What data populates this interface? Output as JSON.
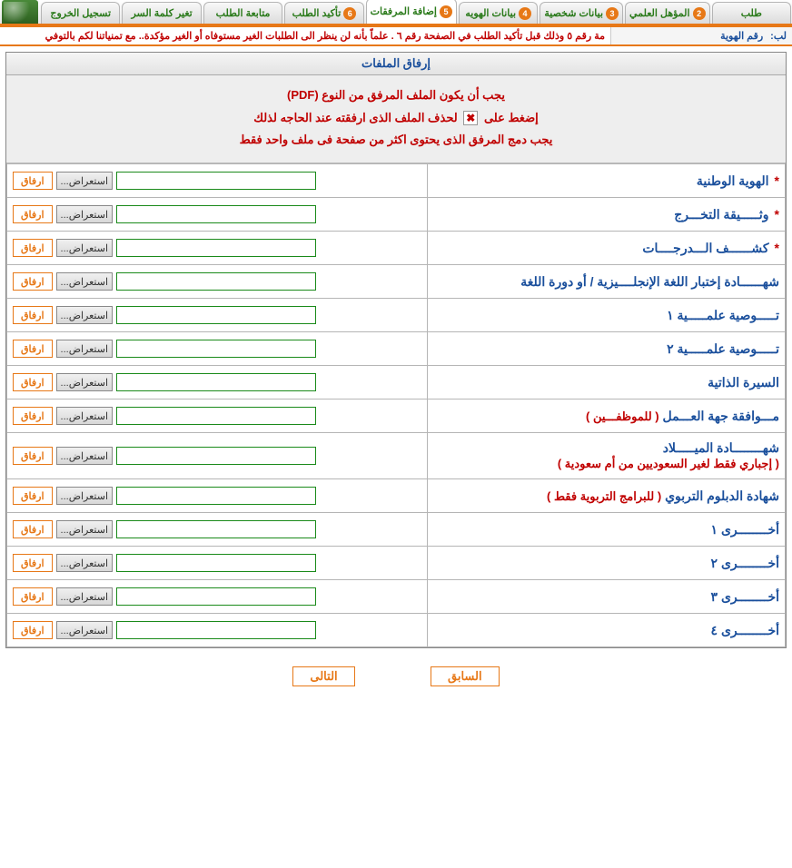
{
  "tabs": [
    {
      "label": "طلب"
    },
    {
      "num": "2",
      "label": "المؤهل العلمي"
    },
    {
      "num": "3",
      "label": "بيانات شخصية"
    },
    {
      "num": "4",
      "label": "بيانات الهويه"
    },
    {
      "num": "5",
      "label": "إضافة المرفقات",
      "active": true
    },
    {
      "num": "6",
      "label": "تأكيد الطلب"
    },
    {
      "label": "متابعة الطلب"
    },
    {
      "label": "تغير كلمة السر"
    },
    {
      "label": "تسجيل الخروج"
    }
  ],
  "sub_right_label_1": "لب:",
  "sub_right_label_2": "رقم الهوية",
  "ticker": "مة رقم ٥ وذلك قبل تأكيد الطلب في الصفحة رقم ٦ . علماً بأنه لن ينظر الى الطلبات الغير مستوفاه أو الغير مؤكدة.. مع تمنياتنا لكم بالتوفي",
  "panel_title": "إرفاق الملفات",
  "instr1_a": "يجب أن يكون الملف المرفق من النوع (",
  "instr1_b": "PDF",
  "instr1_c": ")",
  "instr2_a": "إضغط على",
  "instr2_b": "لحذف الملف الذى ارفقته عند الحاجه لذلك",
  "instr3": "يجب دمج المرفق الذى يحتوى اكثر من صفحة فى ملف واحد فقط",
  "browse_label": "...استعراض",
  "attach_label": "ارفاق",
  "rows": [
    {
      "req": true,
      "main": "الهوية الوطنية"
    },
    {
      "req": true,
      "main": "وثـــــيقة التخـــرج"
    },
    {
      "req": true,
      "main": "كشــــــف الـــدرجــــات"
    },
    {
      "req": false,
      "main": "شهــــــادة إختبار اللغة الإنجلــــيزية / أو دورة اللغة"
    },
    {
      "req": false,
      "main": "تـــــوصية علمـــــية ١"
    },
    {
      "req": false,
      "main": "تـــــوصية علمـــــية ٢"
    },
    {
      "req": false,
      "main": "السيرة الذاتية"
    },
    {
      "req": false,
      "main": "مـــوافقة جهة العـــمل",
      "note": "( للموظفـــين )"
    },
    {
      "req": false,
      "main": "شهــــــــادة الميـــــلاد",
      "note_below": "( إجباري فقط لغير السعوديين من أم سعودية )"
    },
    {
      "req": false,
      "main": "شهادة الدبلوم التربوي",
      "note": "( للبرامج التربوية فقط )"
    },
    {
      "req": false,
      "main": "أخــــــــرى ١"
    },
    {
      "req": false,
      "main": "أخــــــــرى ٢"
    },
    {
      "req": false,
      "main": "أخــــــــرى ٣"
    },
    {
      "req": false,
      "main": "أخــــــــرى ٤"
    }
  ],
  "prev_label": "السابق",
  "next_label": "التالى"
}
